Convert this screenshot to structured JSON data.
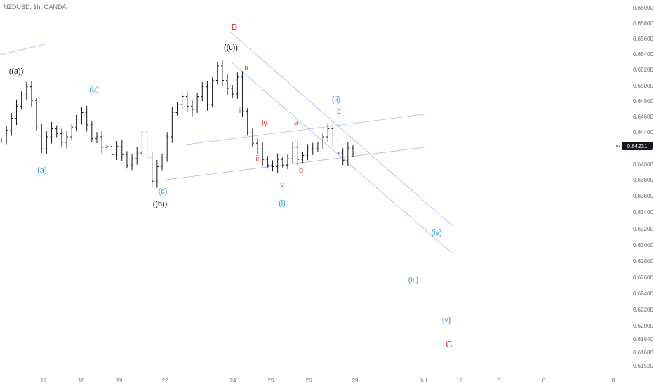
{
  "header": {
    "symbol": "NZDUSD, 1h, OANDA"
  },
  "colors": {
    "bar": "#131722",
    "trendline": "#a9b8e8",
    "blue_label": "#2a98db",
    "red_label": "#e53935",
    "black_label": "#131722",
    "price_tag_bg": "#131722",
    "price_tag_text": "#ffffff"
  },
  "chart_data": {
    "type": "ohlc",
    "x_ticks": [
      "17",
      "18",
      "19",
      "22",
      "24",
      "25",
      "26",
      "29",
      "Jul",
      "2",
      "3",
      "6",
      "8"
    ],
    "y_ticks": [
      "0.66000",
      "0.65800",
      "0.65600",
      "0.65400",
      "0.65200",
      "0.65000",
      "0.64800",
      "0.64600",
      "0.64400",
      "0.64200",
      "0.64000",
      "0.63800",
      "0.63600",
      "0.63400",
      "0.63200",
      "0.63000",
      "0.62800",
      "0.62600",
      "0.62400",
      "0.62200",
      "0.62000",
      "0.61840",
      "0.61680",
      "0.61520"
    ],
    "last_price": "0.64231",
    "close_series": [
      0.6436,
      0.6448,
      0.6463,
      0.6478,
      0.6492,
      0.6502,
      0.6485,
      0.6451,
      0.6425,
      0.644,
      0.645,
      0.6444,
      0.6433,
      0.644,
      0.6452,
      0.6462,
      0.647,
      0.6455,
      0.6438,
      0.644,
      0.6427,
      0.6428,
      0.6418,
      0.6428,
      0.6418,
      0.6405,
      0.6413,
      0.642,
      0.6445,
      0.6415,
      0.6385,
      0.6403,
      0.6415,
      0.644,
      0.647,
      0.648,
      0.649,
      0.6478,
      0.6474,
      0.649,
      0.6502,
      0.648,
      0.651,
      0.6528,
      0.651,
      0.65,
      0.6493,
      0.6514,
      0.6472,
      0.6445,
      0.6432,
      0.6425,
      0.6412,
      0.6405,
      0.6403,
      0.6412,
      0.6405,
      0.6413,
      0.6427,
      0.6412,
      0.6417,
      0.6425,
      0.6425,
      0.643,
      0.644,
      0.645,
      0.6436,
      0.642,
      0.6411,
      0.6426,
      0.6419
    ],
    "wave_labels_black": [
      "((a))",
      "((c))",
      "((b))"
    ],
    "wave_labels_blue": [
      "(b)",
      "(a)",
      "(c)",
      "(ii)",
      "(i)",
      "(iv)",
      "(iii)",
      "(v)"
    ],
    "wave_labels_red": [
      "B",
      "ii",
      "i",
      "iv",
      "a",
      "c",
      "iii",
      "b",
      "v",
      "C"
    ]
  }
}
